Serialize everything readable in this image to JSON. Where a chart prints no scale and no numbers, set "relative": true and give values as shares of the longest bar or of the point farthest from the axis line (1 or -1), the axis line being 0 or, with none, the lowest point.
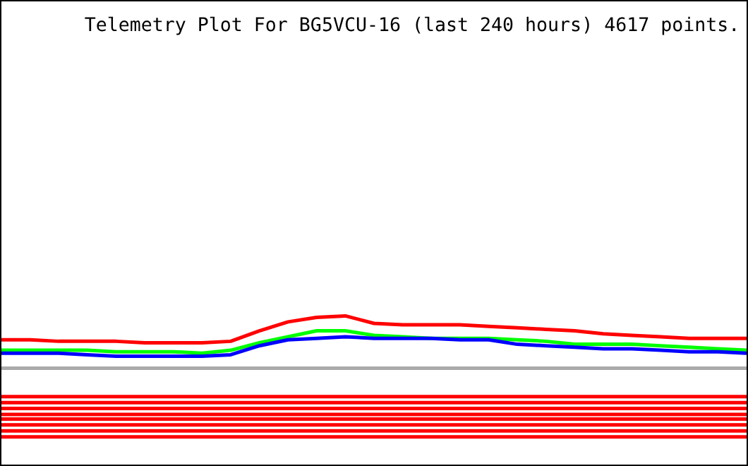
{
  "chart_data": {
    "type": "line",
    "title": "Telemetry Plot For BG5VCU-16 (last 240 hours) 4617 points.",
    "relative": true,
    "categories": [
      null,
      null,
      null,
      null,
      null,
      null,
      null,
      null,
      null,
      null,
      null,
      null,
      null,
      null,
      null,
      null,
      null,
      null,
      null,
      null,
      null,
      null,
      null,
      null,
      null,
      null,
      null
    ],
    "series": [
      {
        "color": "#ff0000",
        "values": [
          0.84,
          0.84,
          0.83,
          0.83,
          0.83,
          0.82,
          0.82,
          0.82,
          0.83,
          0.9,
          0.96,
          0.99,
          1.0,
          0.95,
          0.94,
          0.94,
          0.94,
          0.93,
          0.92,
          0.91,
          0.9,
          0.88,
          0.87,
          0.86,
          0.85,
          0.85,
          0.85
        ]
      },
      {
        "color": "#00ff00",
        "values": [
          0.77,
          0.77,
          0.77,
          0.77,
          0.76,
          0.76,
          0.76,
          0.75,
          0.77,
          0.82,
          0.86,
          0.9,
          0.9,
          0.87,
          0.86,
          0.85,
          0.85,
          0.85,
          0.84,
          0.83,
          0.81,
          0.81,
          0.81,
          0.8,
          0.79,
          0.78,
          0.77
        ]
      },
      {
        "color": "#0000ff",
        "values": [
          0.75,
          0.75,
          0.75,
          0.74,
          0.73,
          0.73,
          0.73,
          0.73,
          0.74,
          0.8,
          0.84,
          0.85,
          0.86,
          0.85,
          0.85,
          0.85,
          0.84,
          0.84,
          0.81,
          0.8,
          0.79,
          0.78,
          0.78,
          0.77,
          0.76,
          0.76,
          0.75
        ]
      },
      {
        "color": "#aaaaaa",
        "values": [
          0.65,
          0.65,
          0.65,
          0.65,
          0.65,
          0.65,
          0.65,
          0.65,
          0.65,
          0.65,
          0.65,
          0.65,
          0.65,
          0.65,
          0.65,
          0.65,
          0.65,
          0.65,
          0.65,
          0.65,
          0.65,
          0.65,
          0.65,
          0.65,
          0.65,
          0.65,
          0.65
        ]
      },
      {
        "color": "#ff0000",
        "values": [
          0.46,
          0.46,
          0.46,
          0.46,
          0.46,
          0.46,
          0.46,
          0.46,
          0.46,
          0.46,
          0.46,
          0.46,
          0.46,
          0.46,
          0.46,
          0.46,
          0.46,
          0.46,
          0.46,
          0.46,
          0.46,
          0.46,
          0.46,
          0.46,
          0.46,
          0.46,
          0.46
        ]
      },
      {
        "color": "#ff0000",
        "values": [
          0.42,
          0.42,
          0.42,
          0.42,
          0.42,
          0.42,
          0.42,
          0.42,
          0.42,
          0.42,
          0.42,
          0.42,
          0.42,
          0.42,
          0.42,
          0.42,
          0.42,
          0.42,
          0.42,
          0.42,
          0.42,
          0.42,
          0.42,
          0.42,
          0.42,
          0.42,
          0.42
        ]
      },
      {
        "color": "#ff0000",
        "values": [
          0.38,
          0.38,
          0.38,
          0.38,
          0.38,
          0.38,
          0.38,
          0.38,
          0.38,
          0.38,
          0.38,
          0.38,
          0.38,
          0.38,
          0.38,
          0.38,
          0.38,
          0.38,
          0.38,
          0.38,
          0.38,
          0.38,
          0.38,
          0.38,
          0.38,
          0.38,
          0.38
        ]
      },
      {
        "color": "#ff0000",
        "values": [
          0.34,
          0.34,
          0.34,
          0.34,
          0.34,
          0.34,
          0.34,
          0.34,
          0.34,
          0.34,
          0.34,
          0.34,
          0.34,
          0.34,
          0.34,
          0.34,
          0.34,
          0.34,
          0.34,
          0.34,
          0.34,
          0.34,
          0.34,
          0.34,
          0.34,
          0.34,
          0.34
        ]
      },
      {
        "color": "#ff0000",
        "values": [
          0.31,
          0.31,
          0.31,
          0.31,
          0.31,
          0.31,
          0.31,
          0.31,
          0.31,
          0.31,
          0.31,
          0.31,
          0.31,
          0.31,
          0.31,
          0.31,
          0.31,
          0.31,
          0.31,
          0.31,
          0.31,
          0.31,
          0.31,
          0.31,
          0.31,
          0.31,
          0.31
        ]
      },
      {
        "color": "#ff0000",
        "values": [
          0.27,
          0.27,
          0.27,
          0.27,
          0.27,
          0.27,
          0.27,
          0.27,
          0.27,
          0.27,
          0.27,
          0.27,
          0.27,
          0.27,
          0.27,
          0.27,
          0.27,
          0.27,
          0.27,
          0.27,
          0.27,
          0.27,
          0.27,
          0.27,
          0.27,
          0.27,
          0.27
        ]
      },
      {
        "color": "#ff0000",
        "values": [
          0.23,
          0.23,
          0.23,
          0.23,
          0.23,
          0.23,
          0.23,
          0.23,
          0.23,
          0.23,
          0.23,
          0.23,
          0.23,
          0.23,
          0.23,
          0.23,
          0.23,
          0.23,
          0.23,
          0.23,
          0.23,
          0.23,
          0.23,
          0.23,
          0.23,
          0.23,
          0.23
        ]
      },
      {
        "color": "#ff0000",
        "values": [
          0.19,
          0.19,
          0.19,
          0.19,
          0.19,
          0.19,
          0.19,
          0.19,
          0.19,
          0.19,
          0.19,
          0.19,
          0.19,
          0.19,
          0.19,
          0.19,
          0.19,
          0.19,
          0.19,
          0.19,
          0.19,
          0.19,
          0.19,
          0.19,
          0.19,
          0.19,
          0.19
        ]
      }
    ]
  }
}
